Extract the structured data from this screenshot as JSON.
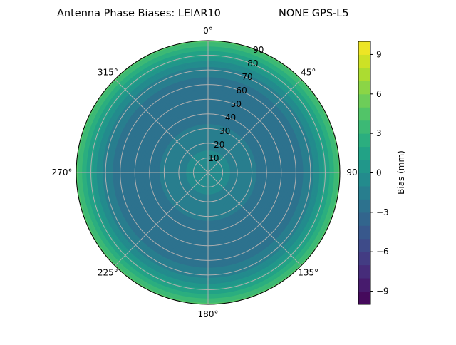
{
  "chart_data": {
    "type": "polar-contour",
    "title_left": "Antenna Phase Biases: LEIAR10",
    "title_right": "NONE GPS-L5",
    "colormap": "viridis",
    "levels_step": 1,
    "angular_ticks": [
      "0°",
      "45°",
      "90°",
      "135°",
      "180°",
      "225°",
      "270°",
      "315°"
    ],
    "radial_ticks": [
      "10",
      "20",
      "30",
      "40",
      "50",
      "60",
      "70",
      "80",
      "90"
    ],
    "radial_range": [
      0,
      90
    ],
    "grid": true,
    "colorbar": {
      "label": "Bias (mm)",
      "range": [
        -10,
        10
      ],
      "ticks": [
        "−9",
        "−6",
        "−3",
        "0",
        "3",
        "6",
        "9"
      ],
      "tick_values": [
        -9,
        -6,
        -3,
        0,
        3,
        6,
        9
      ]
    },
    "radial_profile_approx": {
      "zenith_deg": [
        0,
        10,
        20,
        30,
        40,
        50,
        60,
        70,
        80,
        90
      ],
      "bias_mm": [
        -0.5,
        -0.8,
        -1.2,
        -1.8,
        -2.4,
        -2.7,
        -2.6,
        -1.6,
        1.0,
        4.0
      ]
    }
  }
}
